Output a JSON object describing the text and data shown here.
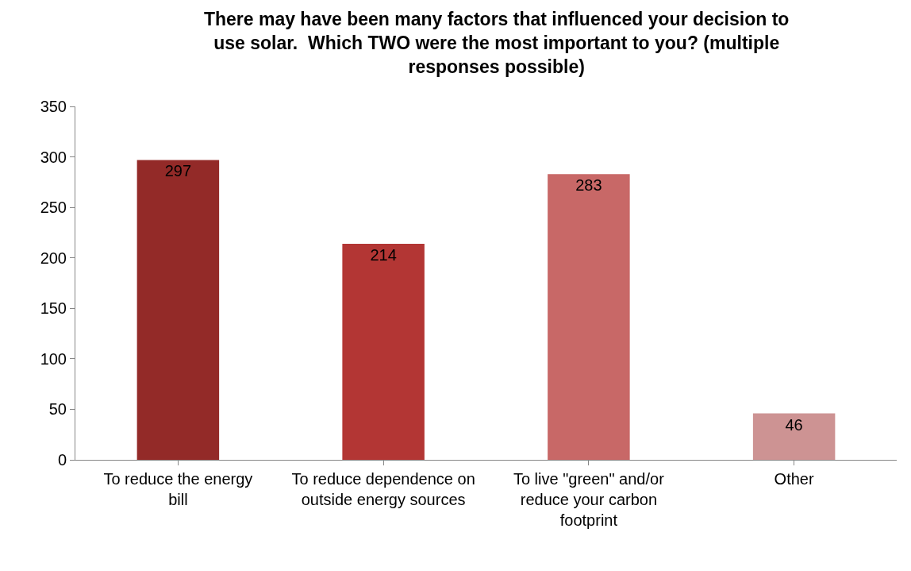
{
  "chart_data": {
    "type": "bar",
    "title": "There may have been many factors that influenced your decision to use solar.  Which TWO were the most important to you? (multiple responses possible)",
    "categories": [
      "To reduce the energy bill",
      "To reduce dependence on outside energy sources",
      "To live \"green\" and/or reduce your carbon footprint",
      "Other"
    ],
    "values": [
      297,
      214,
      283,
      46
    ],
    "colors": [
      "#932a28",
      "#b33634",
      "#c86867",
      "#cd9393"
    ],
    "ylim": [
      0,
      350
    ],
    "yticks": [
      0,
      50,
      100,
      150,
      200,
      250,
      300,
      350
    ],
    "data_labels": true
  }
}
